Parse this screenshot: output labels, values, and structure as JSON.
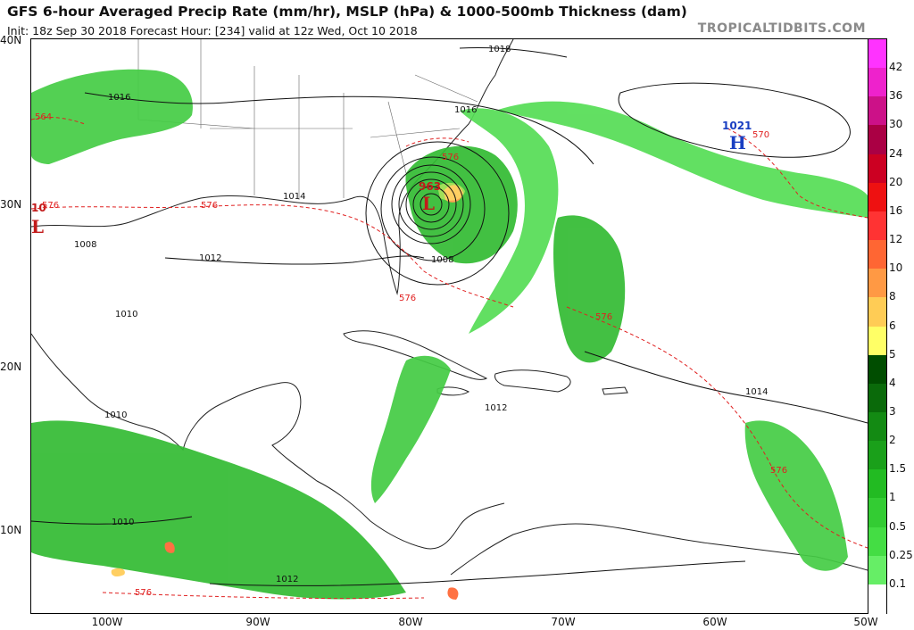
{
  "header": {
    "title": "GFS 6-hour Averaged Precip Rate (mm/hr), MSLP (hPa) & 1000-500mb Thickness (dam)",
    "subtitle": "Init: 18z Sep 30 2018   Forecast Hour: [234]   valid at 12z Wed, Oct 10 2018",
    "brand": "TROPICALTIDBITS.COM"
  },
  "map": {
    "lat_labels": [
      "40N",
      "30N",
      "20N",
      "10N"
    ],
    "lon_labels": [
      "100W",
      "90W",
      "80W",
      "70W",
      "60W",
      "50W"
    ],
    "pressure_centers": [
      {
        "type": "L",
        "value": "963",
        "color": "#c21a1a"
      },
      {
        "type": "L",
        "value": "10",
        "color": "#c21a1a"
      },
      {
        "type": "H",
        "value": "1021",
        "color": "#1a3fc2"
      }
    ],
    "isobar_labels": [
      "1018",
      "1016",
      "1016",
      "1014",
      "1012",
      "1008",
      "1008",
      "1010",
      "1010",
      "1010",
      "1012",
      "1012",
      "1014"
    ],
    "thickness_labels": [
      "564",
      "576",
      "576",
      "576",
      "576",
      "576",
      "576",
      "570",
      "576"
    ]
  },
  "colorbar": {
    "labels": [
      "42",
      "36",
      "30",
      "24",
      "20",
      "16",
      "12",
      "10",
      "8",
      "6",
      "5",
      "4",
      "3",
      "2",
      "1.5",
      "1",
      "0.5",
      "0.25",
      "0.1"
    ],
    "colors": [
      "#ff33ff",
      "#ee22cc",
      "#cc1188",
      "#aa0044",
      "#cc0022",
      "#ee1111",
      "#ff3333",
      "#ff6633",
      "#ff9944",
      "#ffcc55",
      "#ffff66",
      "#004d00",
      "#0a6a0a",
      "#138a13",
      "#1aa01a",
      "#22bb22",
      "#33cc33",
      "#44dd44",
      "#66ee66",
      "#ffffff"
    ]
  }
}
